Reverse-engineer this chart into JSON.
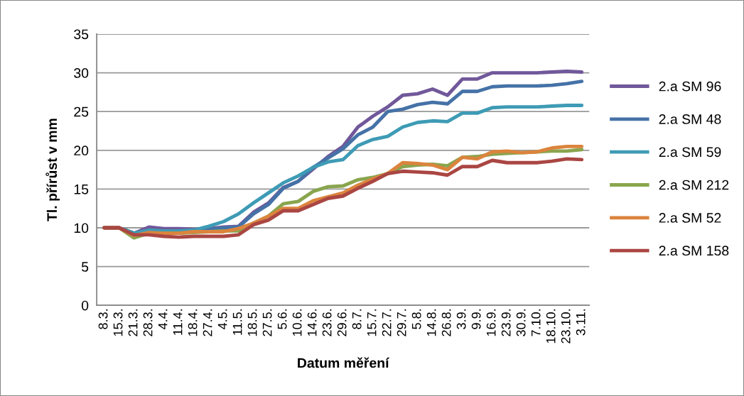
{
  "chart_data": {
    "type": "line",
    "xlabel": "Datum měření",
    "ylabel": "Tl. přírůst v mm",
    "categories": [
      "8.3.",
      "15.3.",
      "21.3.",
      "28.3.",
      "4.4.",
      "11.4.",
      "18.4.",
      "27.4.",
      "4.5.",
      "11.5.",
      "18.5.",
      "27.5.",
      "5.6.",
      "10.6.",
      "14.6.",
      "23.6.",
      "29.6.",
      "8.7.",
      "15.7.",
      "22.7.",
      "29.7.",
      "5.8.",
      "14.8.",
      "26.8.",
      "3.9.",
      "9.9.",
      "16.9.",
      "23.9.",
      "30.9.",
      "7.10.",
      "18.10.",
      "23.10.",
      "3.11."
    ],
    "series": [
      {
        "name": "2.a SM 96",
        "color": "#71589a",
        "values": [
          10,
          10,
          9.3,
          10.1,
          9.9,
          9.9,
          9.8,
          9.9,
          10.1,
          10.2,
          12,
          13.2,
          15.2,
          16,
          17.6,
          19.2,
          20.5,
          23,
          24.4,
          25.6,
          27.1,
          27.3,
          27.9,
          27.1,
          29.2,
          29.2,
          30,
          30,
          30,
          30,
          30.1,
          30.2,
          30.1
        ]
      },
      {
        "name": "2.a SM 48",
        "color": "#4572a7",
        "values": [
          10,
          10,
          9.3,
          9.6,
          9.6,
          9.5,
          9.6,
          9.8,
          10,
          10.1,
          11.8,
          13,
          15.1,
          16,
          17.8,
          19,
          20.2,
          22,
          23,
          25,
          25.3,
          25.9,
          26.2,
          26,
          27.6,
          27.6,
          28.2,
          28.3,
          28.3,
          28.3,
          28.4,
          28.6,
          28.9
        ]
      },
      {
        "name": "2.a SM 59",
        "color": "#3e9bb5",
        "values": [
          10,
          10,
          9.3,
          9.7,
          9.6,
          9.6,
          9.7,
          10.2,
          10.8,
          11.8,
          13.2,
          14.5,
          15.8,
          16.7,
          17.8,
          18.5,
          18.8,
          20.6,
          21.4,
          21.8,
          23,
          23.6,
          23.8,
          23.7,
          24.8,
          24.8,
          25.5,
          25.6,
          25.6,
          25.6,
          25.7,
          25.8,
          25.8
        ]
      },
      {
        "name": "2.a SM 212",
        "color": "#89a54e",
        "values": [
          10,
          10,
          8.7,
          9.3,
          9.3,
          9.3,
          9.4,
          9.5,
          9.6,
          9.6,
          10.6,
          11.5,
          13.1,
          13.4,
          14.7,
          15.3,
          15.4,
          16.2,
          16.5,
          17,
          17.9,
          18.1,
          18.2,
          18,
          19.1,
          19.2,
          19.5,
          19.6,
          19.7,
          19.8,
          19.9,
          19.9,
          20.1
        ]
      },
      {
        "name": "2.a SM 52",
        "color": "#db843d",
        "values": [
          10,
          10,
          9,
          9.4,
          9.3,
          9.3,
          9.5,
          9.5,
          9.5,
          9.9,
          10.6,
          11.5,
          12.5,
          12.5,
          13.5,
          14,
          14.5,
          15.5,
          16.3,
          17,
          18.4,
          18.3,
          18.1,
          17.5,
          19.1,
          18.9,
          19.8,
          19.9,
          19.7,
          19.8,
          20.3,
          20.5,
          20.5
        ]
      },
      {
        "name": "2.a SM 158",
        "color": "#aa4643",
        "values": [
          10,
          10,
          9.1,
          9.1,
          8.9,
          8.8,
          8.9,
          8.9,
          8.9,
          9.1,
          10.4,
          11,
          12.2,
          12.2,
          13,
          13.8,
          14.1,
          15.1,
          16,
          17,
          17.3,
          17.2,
          17.1,
          16.8,
          17.9,
          17.9,
          18.7,
          18.4,
          18.4,
          18.4,
          18.6,
          18.9,
          18.8
        ]
      }
    ],
    "ylim": [
      0,
      35
    ],
    "yticks": [
      0,
      5,
      10,
      15,
      20,
      25,
      30,
      35
    ],
    "grid": "y",
    "legend": "right",
    "marker": "none",
    "line_style": "solid"
  }
}
